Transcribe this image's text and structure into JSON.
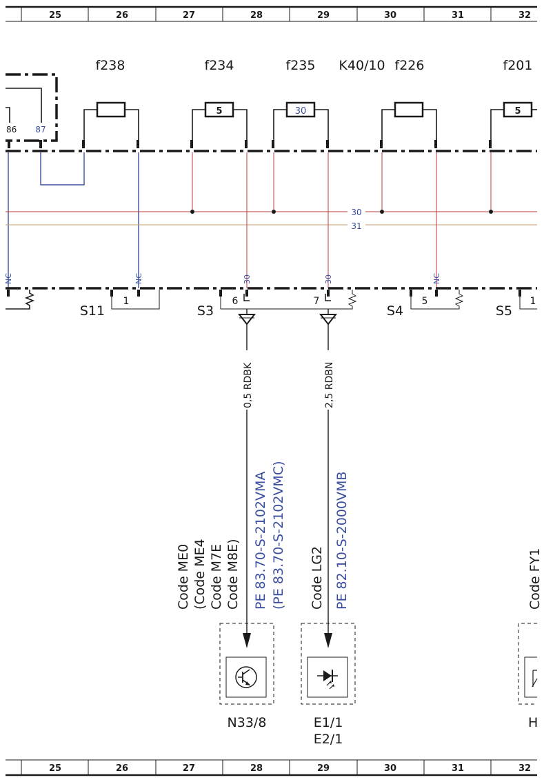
{
  "ruler": {
    "columns": [
      "25",
      "26",
      "27",
      "28",
      "29",
      "30",
      "31",
      "32"
    ]
  },
  "fuses": [
    {
      "id": "f238",
      "rating": ""
    },
    {
      "id": "f234",
      "rating": "5"
    },
    {
      "id": "f235",
      "rating": "30"
    },
    {
      "id": "f226",
      "rating": ""
    },
    {
      "id": "f201",
      "rating": "5"
    }
  ],
  "relay": {
    "id": "K40/10",
    "pin_left": "86",
    "pin_right": "87"
  },
  "bus_labels": {
    "terminal_30": "30",
    "terminal_31": "31"
  },
  "lower_pins": {
    "nc_1": "NC",
    "nc_2": "NC",
    "nc_3": "NC",
    "t30_1": "30",
    "t30_2": "30"
  },
  "switches": [
    {
      "id": "S11",
      "pin": "1"
    },
    {
      "id": "S3",
      "pin_a": "6",
      "pin_b": "7"
    },
    {
      "id": "S4",
      "pin": "5"
    },
    {
      "id": "S5",
      "pin": "1"
    }
  ],
  "wires": {
    "wire_1": "0,5 RDBK",
    "wire_2": "2,5 RDBN"
  },
  "codes": {
    "n33_line1": "Code ME0",
    "n33_line2": "(Code ME4",
    "n33_line3": "Code M7E",
    "n33_line4": "Code M8E)",
    "n33_ref1": "PE 83.70-S-2102VMA",
    "n33_ref2": "(PE 83.70-S-2102VMC)",
    "e1_line1": "Code LG2",
    "e1_ref1": "PE 82.10-S-2000VMB",
    "h_line1": "Code FY1"
  },
  "components": {
    "n33": "N33/8",
    "e1_a": "E1/1",
    "e1_b": "E2/1",
    "h": "H"
  },
  "colors": {
    "red_wire": "#c23b3b",
    "blue_wire": "#3b4fa0",
    "label_blue": "#3b4fa0",
    "terminal_31_wire": "#c89a6a"
  }
}
